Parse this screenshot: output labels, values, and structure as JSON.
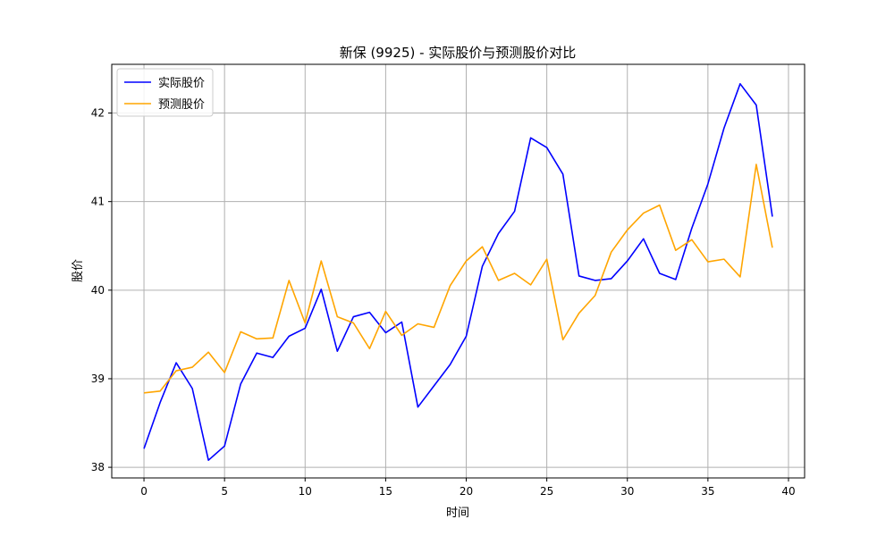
{
  "chart_data": {
    "type": "line",
    "title": "新保 (9925) - 实际股价与预测股价对比",
    "xlabel": "时间",
    "ylabel": "股价",
    "xlim": [
      -2,
      41
    ],
    "ylim": [
      37.88,
      42.55
    ],
    "xticks": [
      0,
      5,
      10,
      15,
      20,
      25,
      30,
      35,
      40
    ],
    "yticks": [
      38,
      39,
      40,
      41,
      42
    ],
    "grid": true,
    "legend_position": "top-left",
    "x": [
      0,
      1,
      2,
      3,
      4,
      5,
      6,
      7,
      8,
      9,
      10,
      11,
      12,
      13,
      14,
      15,
      16,
      17,
      18,
      19,
      20,
      21,
      22,
      23,
      24,
      25,
      26,
      27,
      28,
      29,
      30,
      31,
      32,
      33,
      34,
      35,
      36,
      37,
      38,
      39
    ],
    "series": [
      {
        "name": "实际股价",
        "color": "#0000ff",
        "values": [
          38.21,
          38.73,
          39.18,
          38.89,
          38.08,
          38.24,
          38.94,
          39.29,
          39.24,
          39.48,
          39.57,
          40.01,
          39.31,
          39.7,
          39.75,
          39.52,
          39.64,
          38.68,
          38.92,
          39.16,
          39.48,
          40.27,
          40.64,
          40.89,
          41.72,
          41.61,
          41.31,
          40.16,
          40.11,
          40.13,
          40.33,
          40.58,
          40.19,
          40.12,
          40.7,
          41.2,
          41.83,
          42.33,
          42.09,
          40.83
        ]
      },
      {
        "name": "预测股价",
        "color": "#ffa500",
        "values": [
          38.84,
          38.86,
          39.09,
          39.13,
          39.3,
          39.07,
          39.53,
          39.45,
          39.46,
          40.11,
          39.63,
          40.33,
          39.7,
          39.63,
          39.34,
          39.76,
          39.49,
          39.62,
          39.58,
          40.05,
          40.33,
          40.49,
          40.11,
          40.19,
          40.06,
          40.35,
          39.44,
          39.74,
          39.94,
          40.43,
          40.68,
          40.87,
          40.96,
          40.45,
          40.57,
          40.32,
          40.35,
          40.15,
          41.42,
          40.48
        ]
      }
    ]
  }
}
